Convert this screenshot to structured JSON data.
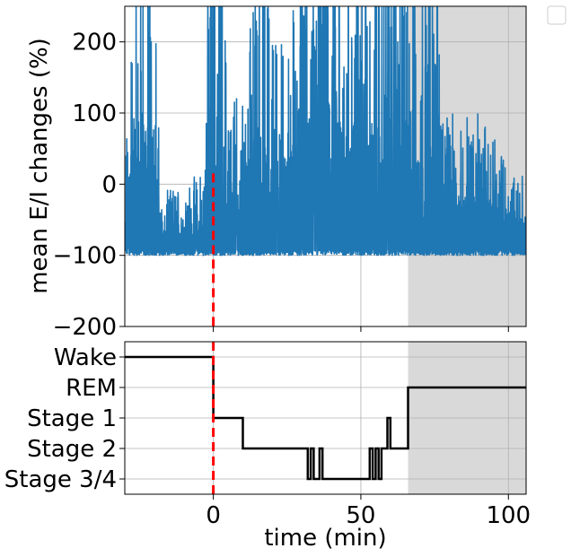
{
  "chart_data": [
    {
      "type": "line",
      "title": "",
      "xlabel": "",
      "ylabel": "mean E/I changes (%)",
      "xlim": [
        -30,
        106
      ],
      "ylim": [
        -200,
        250
      ],
      "yticks": [
        -200,
        -100,
        0,
        100,
        200
      ],
      "yticklabels": [
        "−200",
        "−100",
        "0",
        "100",
        "200"
      ],
      "grid": true,
      "series": [
        {
          "color": "#1f77b4",
          "description": "dense noisy signal; baseline near -100, frequent spikes",
          "baseline": -100,
          "envelope": [
            {
              "x": -30,
              "low": -100,
              "high": -20
            },
            {
              "x": -27,
              "low": -100,
              "high": 250
            },
            {
              "x": -20,
              "low": -100,
              "high": 250
            },
            {
              "x": -18,
              "low": -100,
              "high": -30
            },
            {
              "x": -10,
              "low": -100,
              "high": -20
            },
            {
              "x": -3,
              "low": -100,
              "high": 0
            },
            {
              "x": -2.5,
              "low": -100,
              "high": 250
            },
            {
              "x": 2,
              "low": -100,
              "high": 250
            },
            {
              "x": 5,
              "low": -100,
              "high": 120
            },
            {
              "x": 10,
              "low": -100,
              "high": 80
            },
            {
              "x": 15,
              "low": -100,
              "high": 250
            },
            {
              "x": 25,
              "low": -100,
              "high": 140
            },
            {
              "x": 30,
              "low": -100,
              "high": 250
            },
            {
              "x": 50,
              "low": -100,
              "high": 250
            },
            {
              "x": 60,
              "low": -100,
              "high": 250
            },
            {
              "x": 76,
              "low": -100,
              "high": 250
            },
            {
              "x": 78,
              "low": -100,
              "high": 60
            },
            {
              "x": 90,
              "low": -100,
              "high": 60
            },
            {
              "x": 100,
              "low": -100,
              "high": 10
            },
            {
              "x": 106,
              "low": -100,
              "high": -10
            }
          ]
        }
      ],
      "markers": {
        "vline_x": 0,
        "vline_color": "#ff0000",
        "vline_style": "dashed"
      },
      "shaded_region": {
        "x_start": 66,
        "x_end": 106,
        "color": "#d9d9d9"
      }
    },
    {
      "type": "line",
      "title": "",
      "xlabel": "time (min)",
      "ylabel": "",
      "xlim": [
        -30,
        106
      ],
      "xticks": [
        0,
        50,
        100
      ],
      "xticklabels": [
        "0",
        "50",
        "100"
      ],
      "yticklabels": [
        "Wake",
        "REM",
        "Stage 1",
        "Stage 2",
        "Stage 3/4"
      ],
      "grid": true,
      "series": [
        {
          "color": "#000000",
          "step_points": [
            [
              -30,
              "Wake"
            ],
            [
              0,
              "Wake"
            ],
            [
              0,
              "Stage 1"
            ],
            [
              10,
              "Stage 1"
            ],
            [
              10,
              "Stage 2"
            ],
            [
              32,
              "Stage 2"
            ],
            [
              32,
              "Stage 3/4"
            ],
            [
              33,
              "Stage 3/4"
            ],
            [
              33,
              "Stage 2"
            ],
            [
              34,
              "Stage 2"
            ],
            [
              34,
              "Stage 3/4"
            ],
            [
              36,
              "Stage 3/4"
            ],
            [
              36,
              "Stage 2"
            ],
            [
              37,
              "Stage 2"
            ],
            [
              37,
              "Stage 3/4"
            ],
            [
              53,
              "Stage 3/4"
            ],
            [
              53,
              "Stage 2"
            ],
            [
              54,
              "Stage 2"
            ],
            [
              54,
              "Stage 3/4"
            ],
            [
              55,
              "Stage 3/4"
            ],
            [
              55,
              "Stage 2"
            ],
            [
              56,
              "Stage 2"
            ],
            [
              56,
              "Stage 3/4"
            ],
            [
              57,
              "Stage 3/4"
            ],
            [
              57,
              "Stage 2"
            ],
            [
              59,
              "Stage 2"
            ],
            [
              59,
              "Stage 1"
            ],
            [
              60,
              "Stage 1"
            ],
            [
              60,
              "Stage 2"
            ],
            [
              66,
              "Stage 2"
            ],
            [
              66,
              "REM"
            ],
            [
              106,
              "REM"
            ]
          ]
        }
      ],
      "markers": {
        "vline_x": 0,
        "vline_color": "#ff0000",
        "vline_style": "dashed"
      },
      "shaded_region": {
        "x_start": 66,
        "x_end": 106,
        "color": "#d9d9d9"
      }
    }
  ],
  "legend": {
    "placement": "top-right",
    "entries": []
  }
}
